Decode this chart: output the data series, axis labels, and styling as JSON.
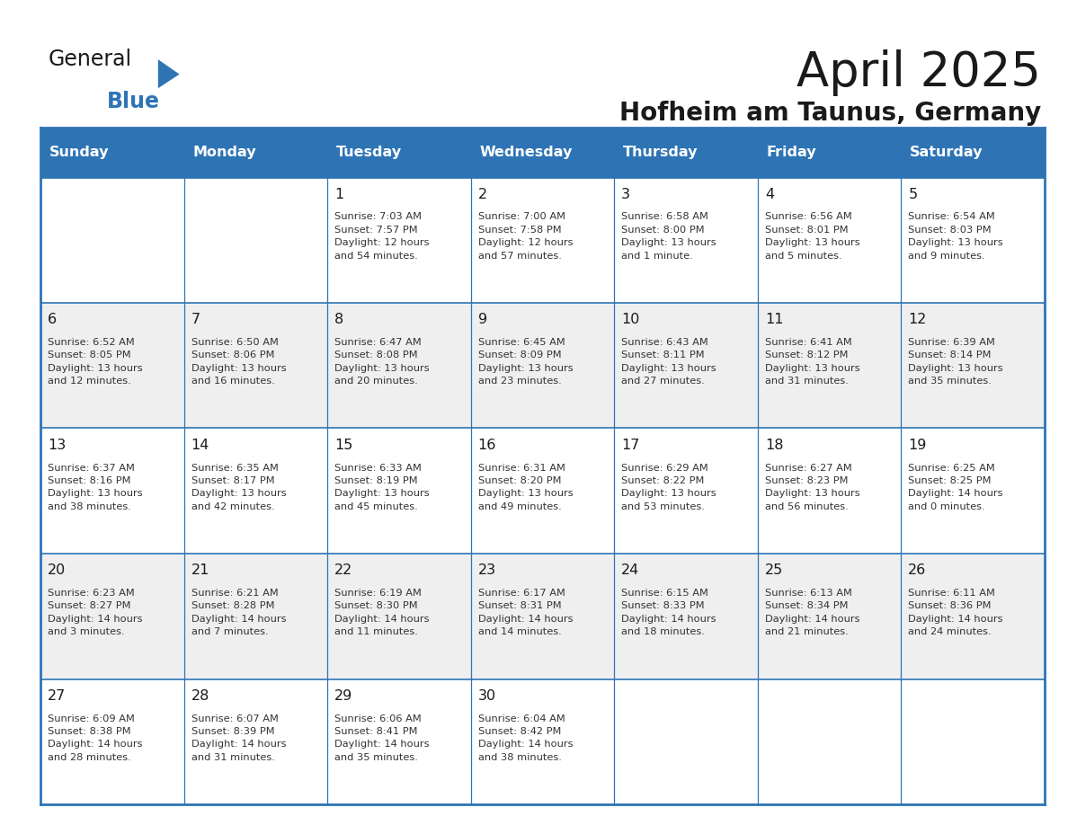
{
  "title": "April 2025",
  "subtitle": "Hofheim am Taunus, Germany",
  "days_of_week": [
    "Sunday",
    "Monday",
    "Tuesday",
    "Wednesday",
    "Thursday",
    "Friday",
    "Saturday"
  ],
  "header_bg": "#2E74B5",
  "header_text": "#FFFFFF",
  "cell_bg_white": "#FFFFFF",
  "cell_bg_gray": "#EFEFEF",
  "border_color": "#2E74B5",
  "text_color": "#333333",
  "logo_general_color": "#1a1a1a",
  "logo_blue_color": "#2E74B5",
  "calendar_data": [
    [
      {
        "day": null,
        "text": ""
      },
      {
        "day": null,
        "text": ""
      },
      {
        "day": 1,
        "text": "Sunrise: 7:03 AM\nSunset: 7:57 PM\nDaylight: 12 hours\nand 54 minutes."
      },
      {
        "day": 2,
        "text": "Sunrise: 7:00 AM\nSunset: 7:58 PM\nDaylight: 12 hours\nand 57 minutes."
      },
      {
        "day": 3,
        "text": "Sunrise: 6:58 AM\nSunset: 8:00 PM\nDaylight: 13 hours\nand 1 minute."
      },
      {
        "day": 4,
        "text": "Sunrise: 6:56 AM\nSunset: 8:01 PM\nDaylight: 13 hours\nand 5 minutes."
      },
      {
        "day": 5,
        "text": "Sunrise: 6:54 AM\nSunset: 8:03 PM\nDaylight: 13 hours\nand 9 minutes."
      }
    ],
    [
      {
        "day": 6,
        "text": "Sunrise: 6:52 AM\nSunset: 8:05 PM\nDaylight: 13 hours\nand 12 minutes."
      },
      {
        "day": 7,
        "text": "Sunrise: 6:50 AM\nSunset: 8:06 PM\nDaylight: 13 hours\nand 16 minutes."
      },
      {
        "day": 8,
        "text": "Sunrise: 6:47 AM\nSunset: 8:08 PM\nDaylight: 13 hours\nand 20 minutes."
      },
      {
        "day": 9,
        "text": "Sunrise: 6:45 AM\nSunset: 8:09 PM\nDaylight: 13 hours\nand 23 minutes."
      },
      {
        "day": 10,
        "text": "Sunrise: 6:43 AM\nSunset: 8:11 PM\nDaylight: 13 hours\nand 27 minutes."
      },
      {
        "day": 11,
        "text": "Sunrise: 6:41 AM\nSunset: 8:12 PM\nDaylight: 13 hours\nand 31 minutes."
      },
      {
        "day": 12,
        "text": "Sunrise: 6:39 AM\nSunset: 8:14 PM\nDaylight: 13 hours\nand 35 minutes."
      }
    ],
    [
      {
        "day": 13,
        "text": "Sunrise: 6:37 AM\nSunset: 8:16 PM\nDaylight: 13 hours\nand 38 minutes."
      },
      {
        "day": 14,
        "text": "Sunrise: 6:35 AM\nSunset: 8:17 PM\nDaylight: 13 hours\nand 42 minutes."
      },
      {
        "day": 15,
        "text": "Sunrise: 6:33 AM\nSunset: 8:19 PM\nDaylight: 13 hours\nand 45 minutes."
      },
      {
        "day": 16,
        "text": "Sunrise: 6:31 AM\nSunset: 8:20 PM\nDaylight: 13 hours\nand 49 minutes."
      },
      {
        "day": 17,
        "text": "Sunrise: 6:29 AM\nSunset: 8:22 PM\nDaylight: 13 hours\nand 53 minutes."
      },
      {
        "day": 18,
        "text": "Sunrise: 6:27 AM\nSunset: 8:23 PM\nDaylight: 13 hours\nand 56 minutes."
      },
      {
        "day": 19,
        "text": "Sunrise: 6:25 AM\nSunset: 8:25 PM\nDaylight: 14 hours\nand 0 minutes."
      }
    ],
    [
      {
        "day": 20,
        "text": "Sunrise: 6:23 AM\nSunset: 8:27 PM\nDaylight: 14 hours\nand 3 minutes."
      },
      {
        "day": 21,
        "text": "Sunrise: 6:21 AM\nSunset: 8:28 PM\nDaylight: 14 hours\nand 7 minutes."
      },
      {
        "day": 22,
        "text": "Sunrise: 6:19 AM\nSunset: 8:30 PM\nDaylight: 14 hours\nand 11 minutes."
      },
      {
        "day": 23,
        "text": "Sunrise: 6:17 AM\nSunset: 8:31 PM\nDaylight: 14 hours\nand 14 minutes."
      },
      {
        "day": 24,
        "text": "Sunrise: 6:15 AM\nSunset: 8:33 PM\nDaylight: 14 hours\nand 18 minutes."
      },
      {
        "day": 25,
        "text": "Sunrise: 6:13 AM\nSunset: 8:34 PM\nDaylight: 14 hours\nand 21 minutes."
      },
      {
        "day": 26,
        "text": "Sunrise: 6:11 AM\nSunset: 8:36 PM\nDaylight: 14 hours\nand 24 minutes."
      }
    ],
    [
      {
        "day": 27,
        "text": "Sunrise: 6:09 AM\nSunset: 8:38 PM\nDaylight: 14 hours\nand 28 minutes."
      },
      {
        "day": 28,
        "text": "Sunrise: 6:07 AM\nSunset: 8:39 PM\nDaylight: 14 hours\nand 31 minutes."
      },
      {
        "day": 29,
        "text": "Sunrise: 6:06 AM\nSunset: 8:41 PM\nDaylight: 14 hours\nand 35 minutes."
      },
      {
        "day": 30,
        "text": "Sunrise: 6:04 AM\nSunset: 8:42 PM\nDaylight: 14 hours\nand 38 minutes."
      },
      {
        "day": null,
        "text": ""
      },
      {
        "day": null,
        "text": ""
      },
      {
        "day": null,
        "text": ""
      }
    ]
  ]
}
